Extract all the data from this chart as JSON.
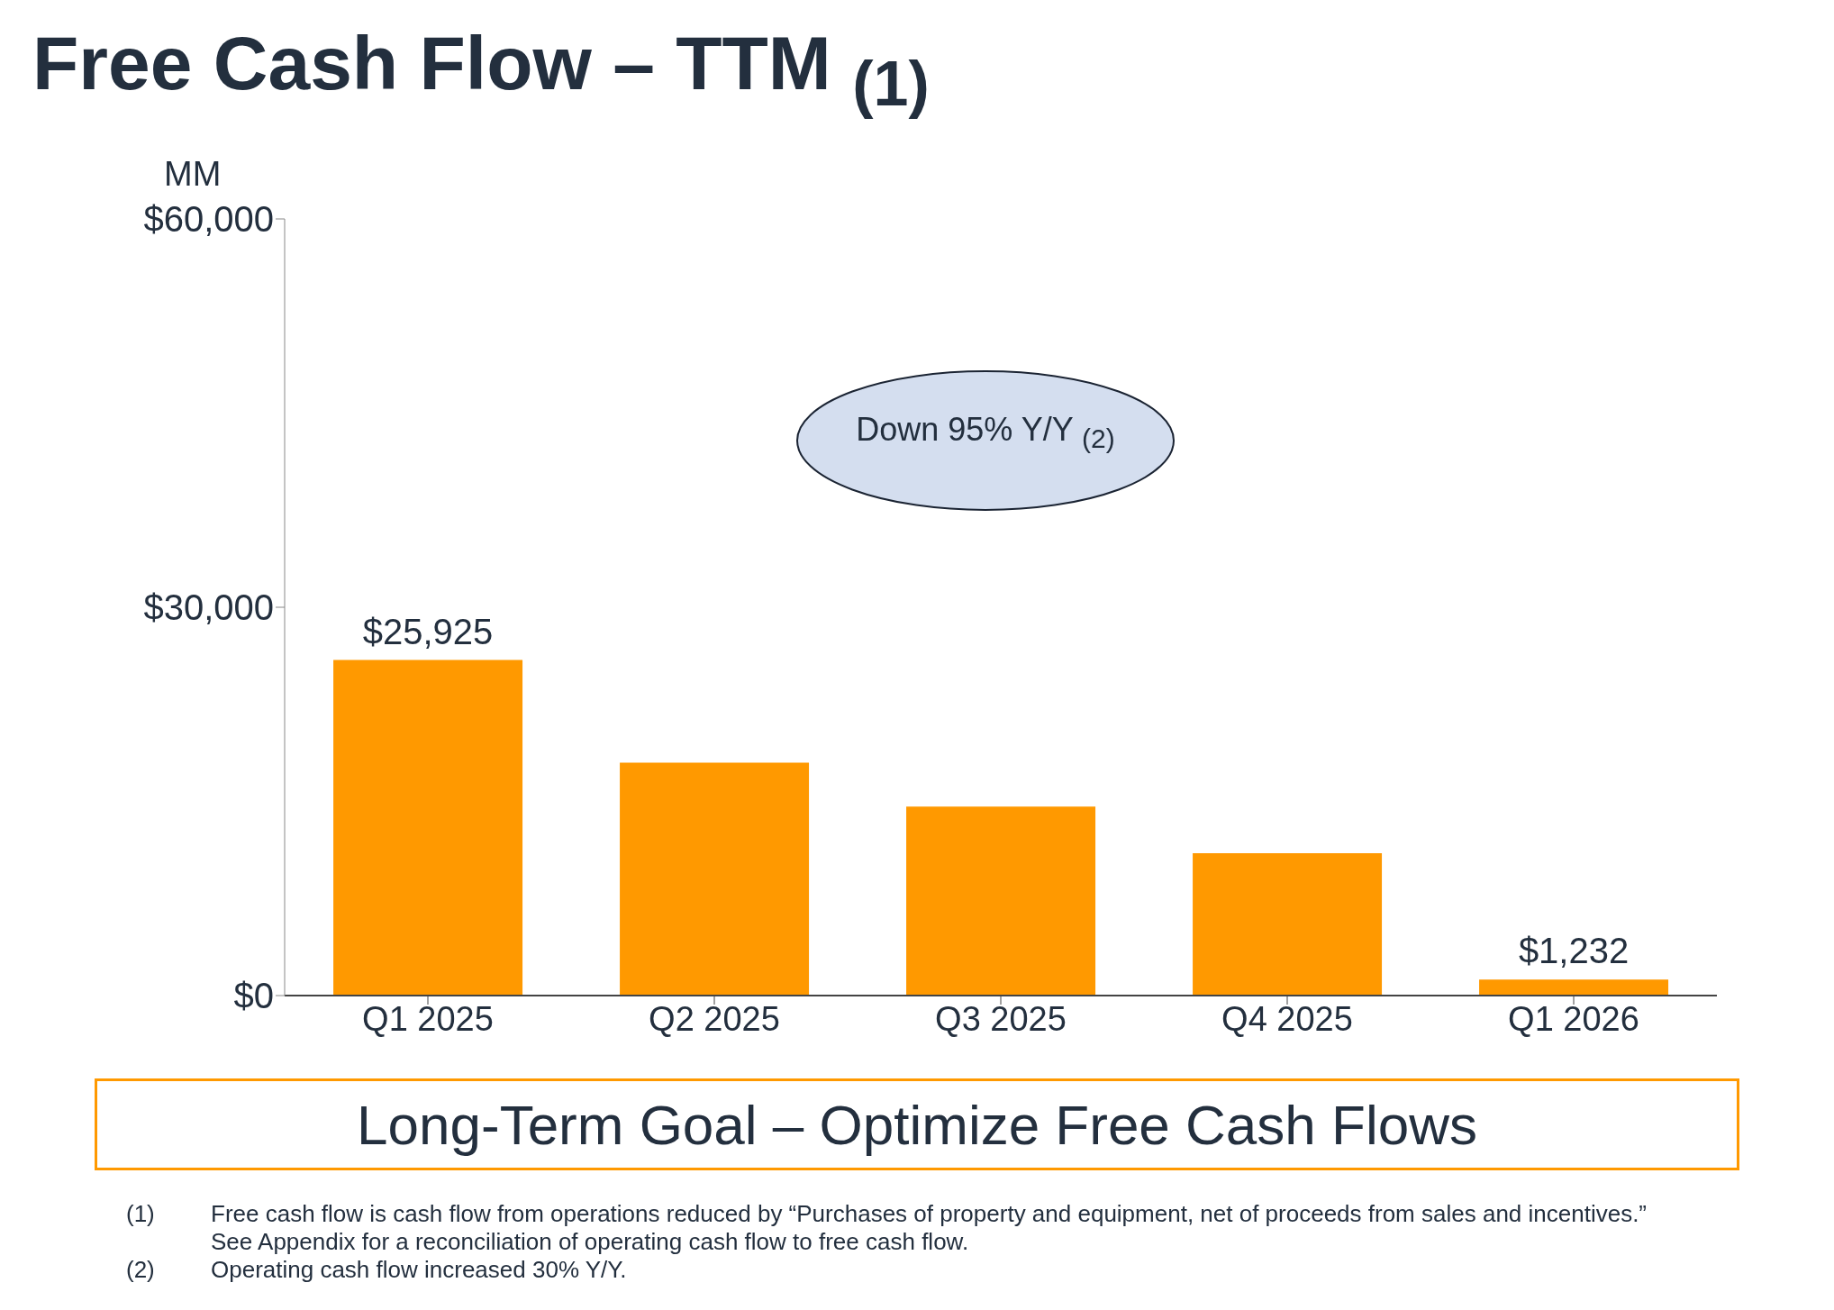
{
  "chart_data": {
    "type": "bar",
    "title": "Free Cash Flow – TTM $_{(1)}$",
    "ylabel": "MM",
    "categories": [
      "Q1 2025",
      "Q2 2025",
      "Q3 2025",
      "Q4 2025",
      "Q1 2026"
    ],
    "values": [
      25925,
      18000,
      14600,
      11000,
      1232
    ],
    "value_labels": [
      "$25,925",
      null,
      null,
      null,
      "$1,232"
    ],
    "color": "#ff9900",
    "ylim": [
      0,
      60000
    ],
    "yticks": [
      {
        "value": 0,
        "label": "$0"
      },
      {
        "value": 30000,
        "label": "$30,000"
      },
      {
        "value": 60000,
        "label": "$60,000"
      }
    ],
    "grid": false,
    "annotations": [
      "Down 95% Y/Y $_{(2)}$",
      "Long-Term Goal – Optimize Free Cash Flows",
      "(1) Free cash flow is cash flow from operations reduced by “Purchases of property and equipment, net of proceeds from sales and incentives.” See Appendix for a reconciliation of operating cash flow to free cash flow.",
      "(2) Operating cash flow increased 30% Y/Y."
    ]
  }
}
